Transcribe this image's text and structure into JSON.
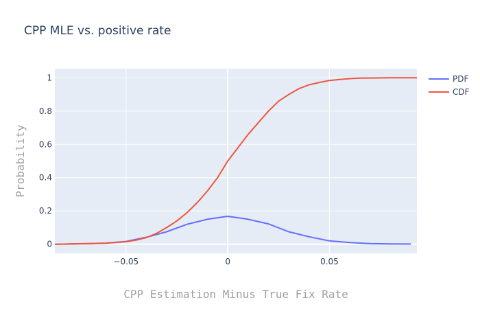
{
  "chart_data": {
    "type": "line",
    "title": "CPP MLE vs. positive rate",
    "xlabel": "CPP Estimation Minus True Fix Rate",
    "ylabel": "Probability",
    "xlim": [
      -0.085,
      0.093
    ],
    "ylim": [
      -0.055,
      1.055
    ],
    "x_ticks": [
      -0.05,
      0,
      0.05
    ],
    "x_tick_labels": [
      "−0.05",
      "0",
      "0.05"
    ],
    "y_ticks": [
      0,
      0.2,
      0.4,
      0.6,
      0.8,
      1
    ],
    "y_tick_labels": [
      "0",
      "0.2",
      "0.4",
      "0.6",
      "0.8",
      "1"
    ],
    "grid": true,
    "legend_position": "top-right",
    "series": [
      {
        "name": "PDF",
        "color": "#636efa",
        "x": [
          -0.085,
          -0.07,
          -0.06,
          -0.05,
          -0.04,
          -0.03,
          -0.02,
          -0.01,
          0,
          0.01,
          0.02,
          0.03,
          0.04,
          0.05,
          0.06,
          0.07,
          0.08,
          0.09
        ],
        "y": [
          0.0,
          0.003,
          0.007,
          0.017,
          0.042,
          0.075,
          0.12,
          0.15,
          0.168,
          0.15,
          0.122,
          0.075,
          0.045,
          0.02,
          0.01,
          0.004,
          0.002,
          0.001
        ]
      },
      {
        "name": "CDF",
        "color": "#ef553b",
        "x": [
          -0.085,
          -0.07,
          -0.06,
          -0.05,
          -0.045,
          -0.04,
          -0.035,
          -0.03,
          -0.025,
          -0.02,
          -0.015,
          -0.01,
          -0.005,
          0,
          0.005,
          0.01,
          0.015,
          0.02,
          0.025,
          0.03,
          0.035,
          0.04,
          0.045,
          0.05,
          0.055,
          0.06,
          0.065,
          0.07,
          0.08,
          0.093
        ],
        "y": [
          0.0,
          0.003,
          0.006,
          0.015,
          0.025,
          0.04,
          0.065,
          0.1,
          0.14,
          0.19,
          0.25,
          0.32,
          0.4,
          0.5,
          0.58,
          0.66,
          0.73,
          0.8,
          0.86,
          0.9,
          0.935,
          0.958,
          0.972,
          0.984,
          0.99,
          0.995,
          0.998,
          0.999,
          1.0,
          1.0
        ]
      }
    ]
  }
}
